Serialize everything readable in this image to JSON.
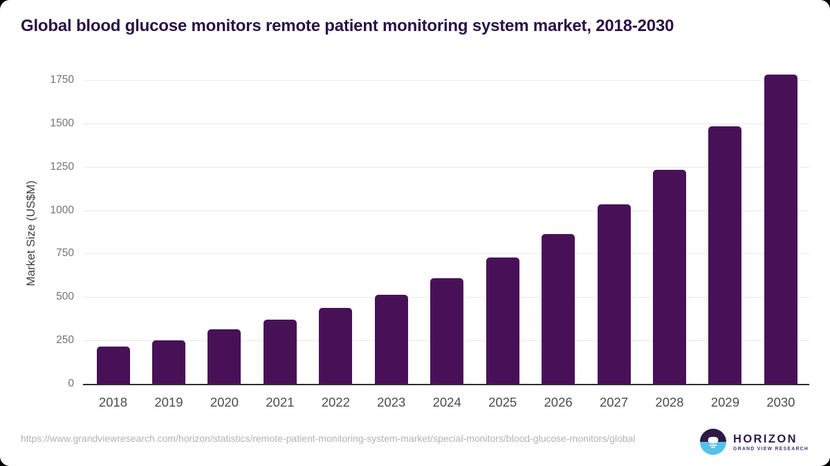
{
  "title": "Global blood glucose monitors remote patient monitoring system market, 2018-2030",
  "chart_data": {
    "type": "bar",
    "categories": [
      "2018",
      "2019",
      "2020",
      "2021",
      "2022",
      "2023",
      "2024",
      "2025",
      "2026",
      "2027",
      "2028",
      "2029",
      "2030"
    ],
    "values": [
      215,
      250,
      313,
      371,
      436,
      515,
      609,
      726,
      865,
      1034,
      1233,
      1482,
      1780
    ],
    "title": "Global blood glucose monitors remote patient monitoring system market, 2018-2030",
    "xlabel": "",
    "ylabel": "Market Size (US$M)",
    "ylim": [
      0,
      1750
    ],
    "ytick_interval": 250,
    "ytick_labels": [
      "0",
      "250",
      "500",
      "750",
      "1000",
      "1250",
      "1500",
      "1750"
    ],
    "grid": true,
    "legend": "none",
    "bar_color": "#481157"
  },
  "colors": {
    "title": "#2b1144",
    "bar": "#481157",
    "gridline": "#e7e7e7",
    "axis_line": "#2e2e2e",
    "x_tick_label": "#4c4c4c",
    "y_tick_label": "#737373",
    "source_url": "#b3b3b3",
    "logo_dark": "#2e1a47",
    "logo_blue": "#58c1e9"
  },
  "footer": {
    "source_url": "https://www.grandviewresearch.com/horizon/statistics/remote-patient-monitoring-system-market/special-monitors/blood-glucose-monitors/global",
    "logo": {
      "brand": "HORIZON",
      "tagline": "GRAND VIEW RESEARCH"
    }
  }
}
